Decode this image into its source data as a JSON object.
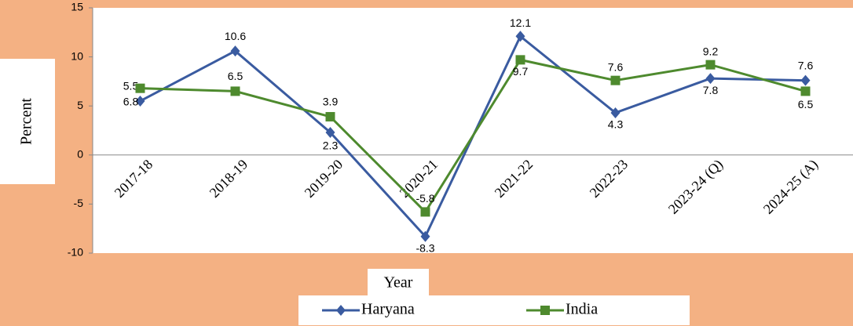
{
  "chart_data": {
    "type": "line",
    "categories": [
      "2017-18",
      "2018-19",
      "2019-20",
      "2020-21",
      "2021-22",
      "2022-23",
      "2023-24 (Q)",
      "2024-25 (A)"
    ],
    "series": [
      {
        "name": "Haryana",
        "color": "#3A5BA0",
        "marker": "diamond",
        "values": [
          5.5,
          10.6,
          2.3,
          -8.3,
          12.1,
          4.3,
          7.8,
          7.6
        ]
      },
      {
        "name": "India",
        "color": "#4E8A2E",
        "marker": "square",
        "values": [
          6.8,
          6.5,
          3.9,
          -5.8,
          9.7,
          7.6,
          9.2,
          6.5
        ]
      }
    ],
    "ylim": [
      -10,
      15
    ],
    "yticks": [
      -10,
      -5,
      0,
      5,
      10,
      15
    ],
    "xlabel": "Year",
    "ylabel": "Percent",
    "legend": "bottom"
  }
}
